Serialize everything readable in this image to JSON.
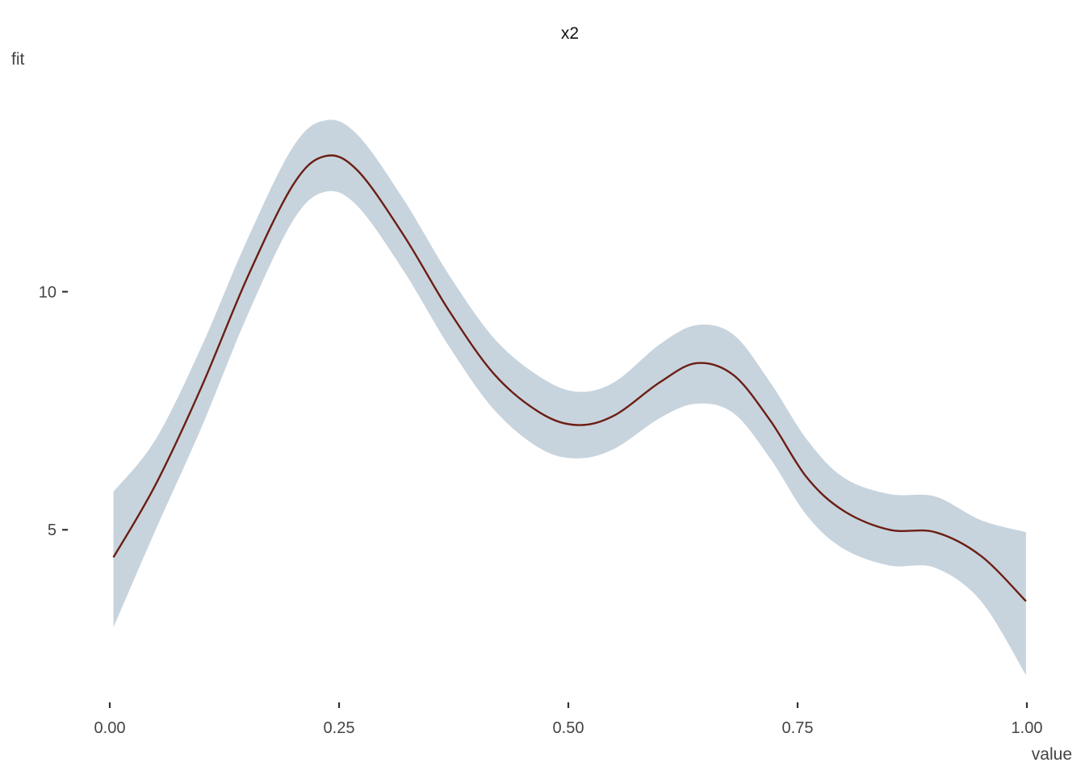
{
  "chart_data": {
    "type": "line",
    "title": "x2",
    "xlabel": "value",
    "ylabel": "fit",
    "xlim": [
      0,
      1
    ],
    "ylim": [
      1.85,
      14.5
    ],
    "grid": false,
    "legend": "none",
    "x_ticks": [
      {
        "value": 0.0,
        "label": "0.00"
      },
      {
        "value": 0.25,
        "label": "0.25"
      },
      {
        "value": 0.5,
        "label": "0.50"
      },
      {
        "value": 0.75,
        "label": "0.75"
      },
      {
        "value": 1.0,
        "label": "1.00"
      }
    ],
    "y_ticks": [
      {
        "value": 5,
        "label": "5"
      },
      {
        "value": 10,
        "label": "10"
      }
    ],
    "series": [
      {
        "color": "#6b1e14",
        "x": [
          0.004,
          0.05,
          0.1,
          0.15,
          0.2,
          0.235,
          0.27,
          0.32,
          0.37,
          0.42,
          0.47,
          0.51,
          0.55,
          0.6,
          0.64,
          0.68,
          0.72,
          0.76,
          0.8,
          0.85,
          0.9,
          0.95,
          0.999
        ],
        "y": [
          4.42,
          5.95,
          8.0,
          10.3,
          12.25,
          12.85,
          12.55,
          11.2,
          9.6,
          8.25,
          7.45,
          7.2,
          7.4,
          8.1,
          8.5,
          8.25,
          7.3,
          6.1,
          5.4,
          5.0,
          4.95,
          4.45,
          3.5
        ],
        "lower": [
          2.95,
          5.0,
          7.15,
          9.5,
          11.5,
          12.1,
          11.8,
          10.45,
          8.85,
          7.5,
          6.7,
          6.5,
          6.7,
          7.35,
          7.65,
          7.45,
          6.5,
          5.3,
          4.6,
          4.25,
          4.2,
          3.5,
          1.95
        ],
        "upper": [
          5.8,
          6.9,
          8.85,
          11.1,
          13.05,
          13.6,
          13.3,
          11.95,
          10.35,
          9.0,
          8.2,
          7.9,
          8.1,
          8.9,
          9.3,
          9.1,
          8.1,
          6.9,
          6.1,
          5.75,
          5.7,
          5.2,
          4.95
        ]
      }
    ],
    "colors": {
      "band": "#c8d4dd",
      "line": "#6b1e14"
    }
  }
}
